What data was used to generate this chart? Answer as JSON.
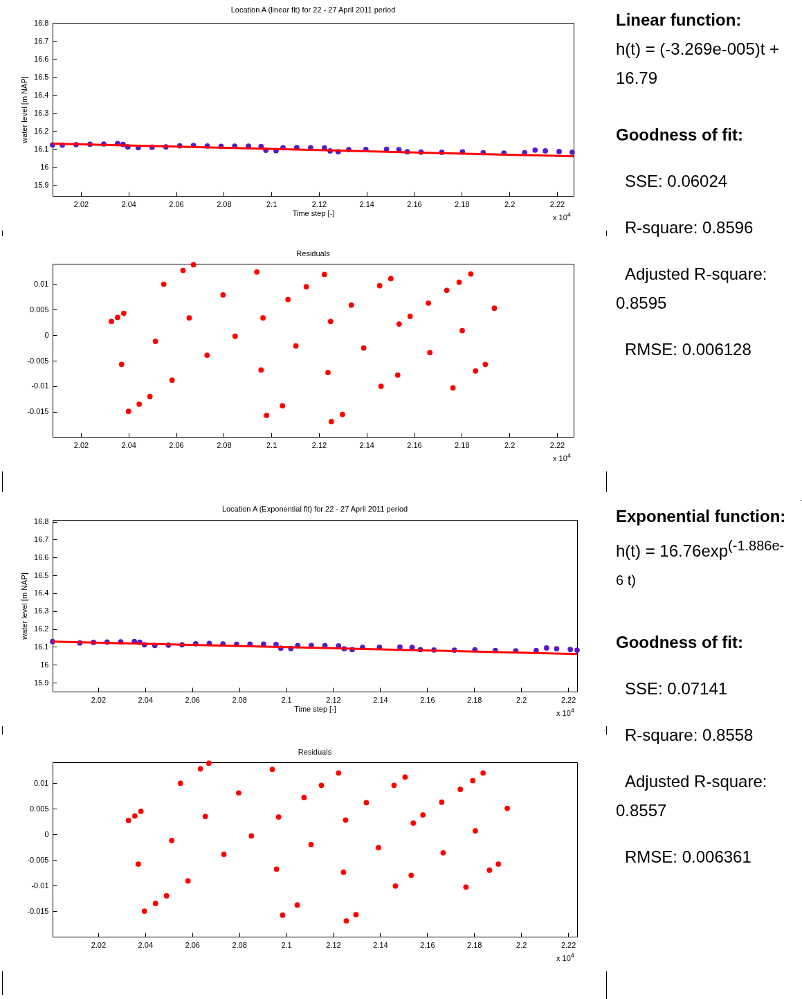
{
  "chart_data": [
    {
      "type": "scatter",
      "title": "Location A (linear fit) for 22 - 27 April 2011 period",
      "xlabel": "Time step [-]",
      "ylabel": "water level [m NAP]",
      "marker": "circle",
      "xlim": [
        2.0081,
        2.227
      ],
      "ylim": [
        15.84,
        16.8
      ],
      "xticks": [
        2.02,
        2.04,
        2.06,
        2.08,
        2.1,
        2.12,
        2.14,
        2.16,
        2.18,
        2.2,
        2.22
      ],
      "yticks": [
        15.9,
        16,
        16.1,
        16.2,
        16.3,
        16.4,
        16.5,
        16.6,
        16.7,
        16.8
      ],
      "series": [
        {
          "type": "scatter",
          "color": "#5b1ac8",
          "x": [
            2.0081,
            2.0122,
            2.018,
            2.0238,
            2.0296,
            2.0354,
            2.0377,
            2.0397,
            2.0441,
            2.0499,
            2.0557,
            2.0615,
            2.0673,
            2.0731,
            2.0789,
            2.0846,
            2.0904,
            2.0957,
            2.0977,
            2.102,
            2.1049,
            2.1107,
            2.1165,
            2.1223,
            2.1247,
            2.1281,
            2.1325,
            2.1397,
            2.1484,
            2.1536,
            2.1571,
            2.1629,
            2.1716,
            2.1803,
            2.189,
            2.1977,
            2.2064,
            2.2108,
            2.2151,
            2.2209,
            2.2264
          ],
          "values": [
            16.123,
            16.122,
            16.125,
            16.127,
            16.128,
            16.13,
            16.126,
            16.112,
            16.108,
            16.11,
            16.112,
            16.118,
            16.12,
            16.117,
            16.115,
            16.116,
            16.116,
            16.114,
            16.093,
            16.091,
            16.107,
            16.108,
            16.107,
            16.106,
            16.09,
            16.085,
            16.097,
            16.098,
            16.099,
            16.097,
            16.085,
            16.083,
            16.082,
            16.084,
            16.08,
            16.078,
            16.08,
            16.094,
            16.09,
            16.086,
            16.082
          ]
        },
        {
          "type": "line",
          "marker": "none",
          "color": "#ff0000",
          "x": [
            2.0081,
            2.227
          ],
          "values": [
            16.13,
            16.06
          ]
        }
      ],
      "annotations": [
        "x 10$^{4}$"
      ]
    },
    {
      "type": "scatter",
      "title": "Residuals",
      "marker": "circle",
      "xlim": [
        2.0081,
        2.227
      ],
      "ylim": [
        -0.0199,
        0.014
      ],
      "xticks": [
        2.02,
        2.04,
        2.06,
        2.08,
        2.1,
        2.12,
        2.14,
        2.16,
        2.18,
        2.2,
        2.22
      ],
      "yticks": [
        -0.015,
        -0.01,
        -0.005,
        0,
        0.005,
        0.01
      ],
      "series": [
        {
          "type": "scatter",
          "color": "#ff0000",
          "x": [
            2.0328,
            2.0354,
            2.038,
            2.0371,
            2.0513,
            2.0655,
            2.0797,
            2.0939,
            2.04,
            2.0445,
            2.049,
            2.073,
            2.0848,
            2.0965,
            2.0957,
            2.1103,
            2.1249,
            2.107,
            2.1147,
            2.1223,
            2.098,
            2.1047,
            2.1238,
            2.1388,
            2.1537,
            2.1336,
            2.1455,
            2.1252,
            2.1299,
            2.1531,
            2.1666,
            2.1802,
            2.1937,
            2.1583,
            2.166,
            2.1737,
            2.1789,
            2.1838,
            2.0548,
            2.0583,
            2.0629,
            2.0673,
            2.1502,
            2.1461,
            2.1763,
            2.1858,
            2.1899
          ],
          "values": [
            0.0027,
            0.0035,
            0.0043,
            -0.0057,
            -0.0012,
            0.0034,
            0.0079,
            0.0124,
            -0.0149,
            -0.0135,
            -0.012,
            -0.0039,
            -0.0002,
            0.0034,
            -0.0068,
            -0.0021,
            0.0027,
            0.007,
            0.0095,
            0.0119,
            -0.0157,
            -0.0138,
            -0.0073,
            -0.0025,
            0.0022,
            0.0059,
            0.0097,
            -0.0169,
            -0.0155,
            -0.0078,
            -0.0034,
            0.0009,
            0.0053,
            0.0037,
            0.0063,
            0.0088,
            0.0104,
            0.012,
            0.01,
            -0.0088,
            0.0127,
            0.0138,
            0.0111,
            -0.01,
            -0.0103,
            -0.007,
            -0.0057
          ]
        }
      ],
      "annotations": [
        "x 10$^{4}$"
      ]
    },
    {
      "type": "other",
      "title": "Linear function:",
      "annotations": [
        "h(t) = (-3.269e-005)t + 16.79",
        "Goodness of fit:",
        "SSE: 0.06024",
        "R-square: 0.8596",
        "Adjusted R-square: 0.8595",
        "RMSE: 0.006128"
      ]
    },
    {
      "type": "scatter",
      "title": "Location A (Exponential fit) for 22 - 27 April 2011 period",
      "xlabel": "Time step [-]",
      "ylabel": "water level [m NAP]",
      "marker": "circle",
      "xlim": [
        2.0006,
        2.2238
      ],
      "ylim": [
        15.85,
        16.81
      ],
      "xticks": [
        2.02,
        2.04,
        2.06,
        2.08,
        2.1,
        2.12,
        2.14,
        2.16,
        2.18,
        2.2,
        2.22
      ],
      "yticks": [
        15.9,
        16,
        16.1,
        16.2,
        16.3,
        16.4,
        16.5,
        16.6,
        16.7,
        16.8
      ],
      "series": [
        {
          "type": "scatter",
          "color": "#5b1ac8",
          "x": [
            2.0006,
            2.0122,
            2.018,
            2.0238,
            2.0296,
            2.0354,
            2.0377,
            2.0397,
            2.0441,
            2.0499,
            2.0557,
            2.0615,
            2.0673,
            2.0731,
            2.0789,
            2.0846,
            2.0904,
            2.0957,
            2.0977,
            2.102,
            2.1049,
            2.1107,
            2.1165,
            2.1223,
            2.1247,
            2.1281,
            2.1325,
            2.1397,
            2.1484,
            2.1536,
            2.1571,
            2.1629,
            2.1716,
            2.1803,
            2.189,
            2.1977,
            2.2064,
            2.2108,
            2.2151,
            2.2209,
            2.2238
          ],
          "values": [
            16.13,
            16.122,
            16.125,
            16.127,
            16.128,
            16.13,
            16.126,
            16.112,
            16.108,
            16.11,
            16.112,
            16.118,
            16.12,
            16.117,
            16.115,
            16.116,
            16.116,
            16.114,
            16.093,
            16.091,
            16.107,
            16.108,
            16.107,
            16.106,
            16.09,
            16.085,
            16.097,
            16.098,
            16.099,
            16.097,
            16.085,
            16.083,
            16.082,
            16.084,
            16.08,
            16.078,
            16.08,
            16.094,
            16.09,
            16.086,
            16.082
          ]
        },
        {
          "type": "line",
          "marker": "none",
          "color": "#ff0000",
          "x": [
            2.0006,
            2.2238
          ],
          "values": [
            16.13,
            16.06
          ]
        }
      ],
      "annotations": [
        "x 10$^{4}$"
      ]
    },
    {
      "type": "scatter",
      "title": "Residuals",
      "marker": "circle",
      "xlim": [
        2.0006,
        2.2238
      ],
      "ylim": [
        -0.02,
        0.0141
      ],
      "xticks": [
        2.02,
        2.04,
        2.06,
        2.08,
        2.1,
        2.12,
        2.14,
        2.16,
        2.18,
        2.2,
        2.22
      ],
      "yticks": [
        -0.015,
        -0.01,
        -0.005,
        0,
        0.005,
        0.01
      ],
      "series": [
        {
          "type": "scatter",
          "color": "#ff0000",
          "x": [
            2.0329,
            2.0356,
            2.0382,
            2.0371,
            2.0513,
            2.0656,
            2.0798,
            2.0941,
            2.0397,
            2.0444,
            2.0491,
            2.0735,
            2.0852,
            2.0968,
            2.0959,
            2.1106,
            2.1253,
            2.1076,
            2.115,
            2.1223,
            2.0985,
            2.1047,
            2.1244,
            2.1393,
            2.1541,
            2.1341,
            2.1459,
            2.1256,
            2.1297,
            2.1532,
            2.1668,
            2.1805,
            2.1941,
            2.1582,
            2.1662,
            2.1741,
            2.1794,
            2.1838,
            2.055,
            2.0582,
            2.0635,
            2.0671,
            2.1506,
            2.1465,
            2.1765,
            2.1865,
            2.1903
          ],
          "values": [
            0.0027,
            0.0036,
            0.0045,
            -0.0058,
            -0.0012,
            0.0035,
            0.0081,
            0.0127,
            -0.015,
            -0.0135,
            -0.012,
            -0.0039,
            -0.0003,
            0.0034,
            -0.0068,
            -0.002,
            0.0028,
            0.0072,
            0.0096,
            0.012,
            -0.0158,
            -0.0138,
            -0.0074,
            -0.0026,
            0.0022,
            0.0062,
            0.0096,
            -0.0169,
            -0.0157,
            -0.008,
            -0.0036,
            0.0007,
            0.0051,
            0.0038,
            0.0063,
            0.0088,
            0.0105,
            0.012,
            0.01,
            -0.0091,
            0.0128,
            0.0139,
            0.0112,
            -0.0101,
            -0.0103,
            -0.007,
            -0.0058
          ]
        }
      ],
      "annotations": [
        "x 10$^{4}$"
      ]
    },
    {
      "type": "other",
      "title": "Exponential function:",
      "annotations": [
        "h(t) = 16.76exp$^{(-1.886e-6 t)}$",
        "Goodness of fit:",
        "SSE: 0.07141",
        "R-square: 0.8558",
        "Adjusted R-square: 0.8557",
        "RMSE: 0.006361"
      ]
    }
  ]
}
